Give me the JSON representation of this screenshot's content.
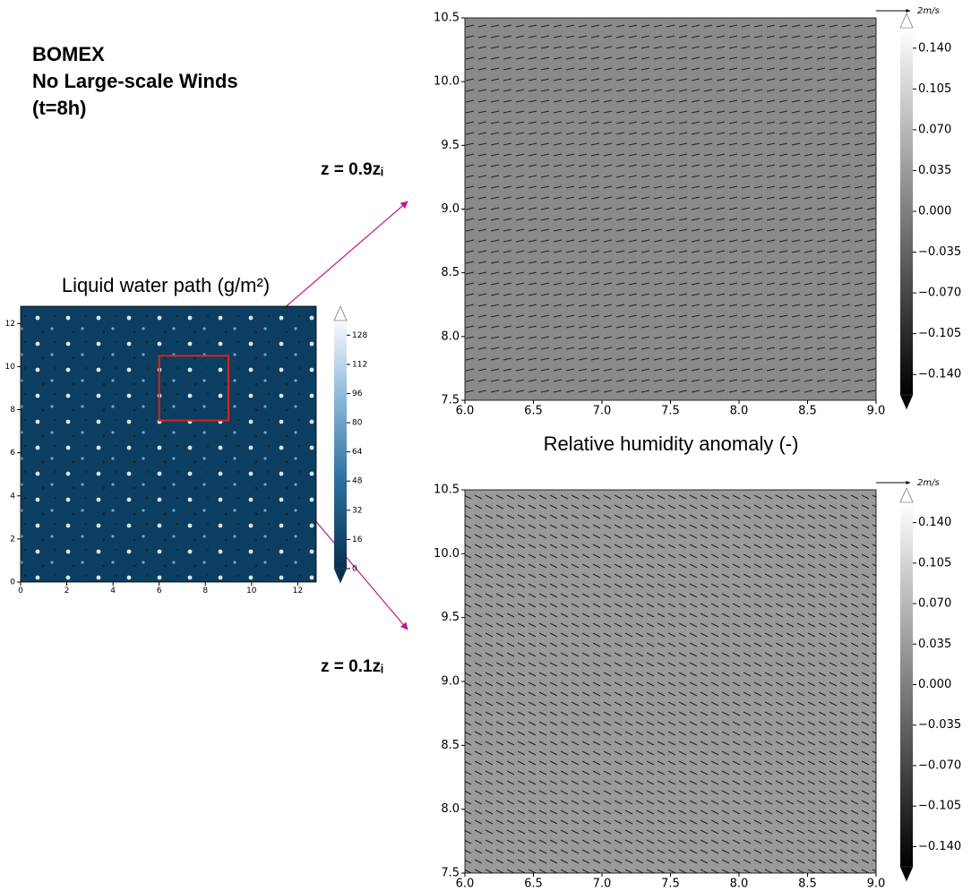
{
  "chart_data": [
    {
      "type": "heatmap",
      "header": [
        "BOMEX",
        "No Large-scale Winds",
        "(t=8h)"
      ],
      "title": "Liquid water path (g/m²)",
      "xlim": [
        0,
        12.8
      ],
      "ylim": [
        0,
        12.8
      ],
      "xticks": [
        0,
        2,
        4,
        6,
        8,
        10,
        12
      ],
      "yticks": [
        0,
        2,
        4,
        6,
        8,
        10,
        12
      ],
      "highlight_box": {
        "x": [
          6,
          9
        ],
        "y": [
          7.5,
          10.5
        ],
        "color": "#e02020"
      },
      "colorbar": {
        "lim": [
          0,
          136
        ],
        "ticks": [
          0,
          16,
          32,
          48,
          64,
          80,
          96,
          112,
          128
        ]
      }
    },
    {
      "type": "heatmap",
      "annotation": "z = 0.9zᵢ",
      "quiver_key": "2m/s",
      "xlim": [
        6,
        9
      ],
      "ylim": [
        7.5,
        10.5
      ],
      "xticks": [
        {
          "value": 6,
          "label": "6.0"
        },
        {
          "value": 6.5,
          "label": "6.5"
        },
        {
          "value": 7,
          "label": "7.0"
        },
        {
          "value": 7.5,
          "label": "7.5"
        },
        {
          "value": 8,
          "label": "8.0"
        },
        {
          "value": 8.5,
          "label": "8.5"
        },
        {
          "value": 9,
          "label": "9.0"
        }
      ],
      "yticks": [
        {
          "value": 7.5,
          "label": "7.5"
        },
        {
          "value": 8,
          "label": "8.0"
        },
        {
          "value": 8.5,
          "label": "8.5"
        },
        {
          "value": 9,
          "label": "9.0"
        },
        {
          "value": 9.5,
          "label": "9.5"
        },
        {
          "value": 10,
          "label": "10.0"
        },
        {
          "value": 10.5,
          "label": "10.5"
        }
      ],
      "colorbar": {
        "lim": [
          -0.1575,
          0.1575
        ],
        "ticks": [
          {
            "value": -0.14,
            "label": "−0.140"
          },
          {
            "value": -0.105,
            "label": "−0.105"
          },
          {
            "value": -0.07,
            "label": "−0.070"
          },
          {
            "value": -0.035,
            "label": "−0.035"
          },
          {
            "value": 0,
            "label": "0.000"
          },
          {
            "value": 0.035,
            "label": "0.035"
          },
          {
            "value": 0.07,
            "label": "0.070"
          },
          {
            "value": 0.105,
            "label": "0.105"
          },
          {
            "value": 0.14,
            "label": "0.140"
          }
        ]
      }
    },
    {
      "type": "heatmap",
      "title": "Relative humidity anomaly (-)",
      "annotation": "z = 0.1zᵢ",
      "quiver_key": "2m/s",
      "xlim": [
        6,
        9
      ],
      "ylim": [
        7.5,
        10.5
      ],
      "xticks": [
        {
          "value": 6,
          "label": "6.0"
        },
        {
          "value": 6.5,
          "label": "6.5"
        },
        {
          "value": 7,
          "label": "7.0"
        },
        {
          "value": 7.5,
          "label": "7.5"
        },
        {
          "value": 8,
          "label": "8.0"
        },
        {
          "value": 8.5,
          "label": "8.5"
        },
        {
          "value": 9,
          "label": "9.0"
        }
      ],
      "yticks": [
        {
          "value": 7.5,
          "label": "7.5"
        },
        {
          "value": 8,
          "label": "8.0"
        },
        {
          "value": 8.5,
          "label": "8.5"
        },
        {
          "value": 9,
          "label": "9.0"
        },
        {
          "value": 9.5,
          "label": "9.5"
        },
        {
          "value": 10,
          "label": "10.0"
        },
        {
          "value": 10.5,
          "label": "10.5"
        }
      ],
      "colorbar": {
        "lim": [
          -0.1575,
          0.1575
        ],
        "ticks": [
          {
            "value": -0.14,
            "label": "−0.140"
          },
          {
            "value": -0.105,
            "label": "−0.105"
          },
          {
            "value": -0.07,
            "label": "−0.070"
          },
          {
            "value": -0.035,
            "label": "−0.035"
          },
          {
            "value": 0,
            "label": "0.000"
          },
          {
            "value": 0.035,
            "label": "0.035"
          },
          {
            "value": 0.07,
            "label": "0.070"
          },
          {
            "value": 0.105,
            "label": "0.105"
          },
          {
            "value": 0.14,
            "label": "0.140"
          }
        ]
      }
    }
  ]
}
